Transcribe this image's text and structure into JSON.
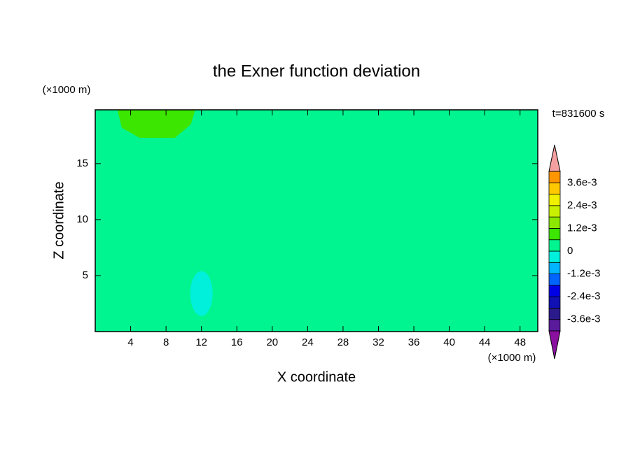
{
  "chart_data": {
    "type": "contour",
    "title": "the Exner function deviation",
    "xlabel": "X coordinate",
    "ylabel": "Z coordinate",
    "xunit": "(×1000 m)",
    "yunit": "(×1000 m)",
    "annotation": "t=831600 s",
    "xlim": [
      0,
      50
    ],
    "ylim": [
      0,
      19.8
    ],
    "xticks": [
      4,
      8,
      12,
      16,
      20,
      24,
      28,
      32,
      36,
      40,
      44,
      48
    ],
    "yticks": [
      5,
      10,
      15
    ],
    "colorbar": {
      "levels": [
        -0.0042,
        -0.0036,
        -0.003,
        -0.0024,
        -0.0018,
        -0.0012,
        -0.0006,
        0,
        0.0006,
        0.0012,
        0.0018,
        0.0024,
        0.003,
        0.0036,
        0.0042
      ],
      "colors": [
        "#5a1a9c",
        "#2a1a8c",
        "#1010b4",
        "#0000e6",
        "#0064ff",
        "#00b4ff",
        "#00f0dc",
        "#00f590",
        "#3ce600",
        "#8ce800",
        "#c8f000",
        "#f0f000",
        "#ffc800",
        "#ff9600"
      ],
      "over_color": "#f4a0a0",
      "under_color": "#8a10a0",
      "ticks": [
        {
          "value": 0.0036,
          "label": "3.6e-3"
        },
        {
          "value": 0.0024,
          "label": "2.4e-3"
        },
        {
          "value": 0.0012,
          "label": "1.2e-3"
        },
        0,
        {
          "value": -0.0012,
          "label": "-1.2e-3"
        },
        {
          "value": -0.0024,
          "label": "-2.4e-3"
        },
        {
          "value": -0.0036,
          "label": "-3.6e-3"
        }
      ]
    }
  }
}
